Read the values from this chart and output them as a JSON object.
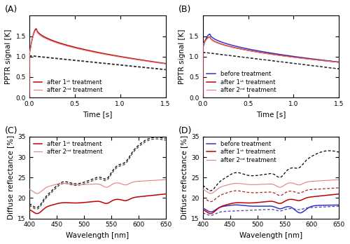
{
  "panel_A": {
    "title": "(A)",
    "xlabel": "Time [s]",
    "ylabel": "PPTR signal [K]",
    "xlim": [
      0,
      1.5
    ],
    "ylim": [
      0.0,
      2.0
    ],
    "yticks": [
      0.0,
      0.5,
      1.0,
      1.5
    ],
    "xticks": [
      0.0,
      0.5,
      1.0,
      1.5
    ],
    "legend": [
      "after 1ˢᵗ treatment",
      "after 2ⁿᵈ treatment"
    ],
    "colors_solid": [
      "#c00000",
      "#e08080"
    ],
    "peak_time": 0.08,
    "peak_val_1": 1.68,
    "peak_val_2": 1.65,
    "start_val_1": 1.05,
    "start_val_2": 1.04,
    "end_val_1": 0.83,
    "end_val_2": 0.82,
    "dashed_start_1": 1.02,
    "dashed_end_1": 0.685,
    "dashed_start_2": 1.01,
    "dashed_end_2": 0.675
  },
  "panel_B": {
    "title": "(B)",
    "xlabel": "Time [s]",
    "ylabel": "PPTR signal [K]",
    "xlim": [
      0,
      1.5
    ],
    "ylim": [
      0.0,
      2.0
    ],
    "yticks": [
      0.0,
      0.5,
      1.0,
      1.5
    ],
    "xticks": [
      0.0,
      0.5,
      1.0,
      1.5
    ],
    "legend": [
      "before treatment",
      "after 1ˢᵗ treatment",
      "after 2ⁿᵈ treatment"
    ],
    "colors_solid": [
      "#3333cc",
      "#c00000",
      "#e08080"
    ],
    "peak_val_before": 1.55,
    "peak_val_1": 1.48,
    "peak_val_2": 1.47,
    "start_val_before": 1.22,
    "start_val_1": 1.3,
    "start_val_2": 1.28,
    "end_val_before": 0.865,
    "end_val_1": 0.862,
    "end_val_2": 0.858,
    "dashed_start": 1.1,
    "dashed_end": 0.7
  },
  "panel_C": {
    "title": "(C)",
    "xlabel": "Wavelength [nm]",
    "ylabel": "Diffuse reflectance [%]",
    "xlim": [
      400,
      650
    ],
    "ylim": [
      15,
      35
    ],
    "yticks": [
      15,
      20,
      25,
      30,
      35
    ],
    "xticks": [
      400,
      450,
      500,
      550,
      600,
      650
    ],
    "legend": [
      "after 1ˢᵗ treatment",
      "after 2ⁿᵈ treatment"
    ],
    "colors_solid": [
      "#c00000",
      "#e08080"
    ],
    "curve1_base": 17.5,
    "curve2_base": 22.0,
    "dashed1_base": 19.5,
    "dashed2_base": 18.5
  },
  "panel_D": {
    "title": "(D)",
    "xlabel": "Wavelength [nm]",
    "ylabel": "Diffuse reflectance [%]",
    "xlim": [
      400,
      650
    ],
    "ylim": [
      15,
      35
    ],
    "yticks": [
      15,
      20,
      25,
      30,
      35
    ],
    "xticks": [
      400,
      450,
      500,
      550,
      600,
      650
    ],
    "legend": [
      "before treatment",
      "after 1ˢᵗ treatment",
      "after 2ⁿᵈ treatment"
    ],
    "colors_solid": [
      "#3333cc",
      "#c00000",
      "#e08080"
    ],
    "curve_before_base": 17.5,
    "curve1_base": 19.0,
    "curve2_base": 21.5,
    "dashed_before_base": 16.5,
    "dashed1_base": 20.0,
    "dashed2_base": 23.5
  },
  "bg_color": "#ffffff",
  "legend_fontsize": 6.0,
  "axis_label_fontsize": 7.5,
  "tick_fontsize": 6.5,
  "panel_label_fontsize": 9
}
